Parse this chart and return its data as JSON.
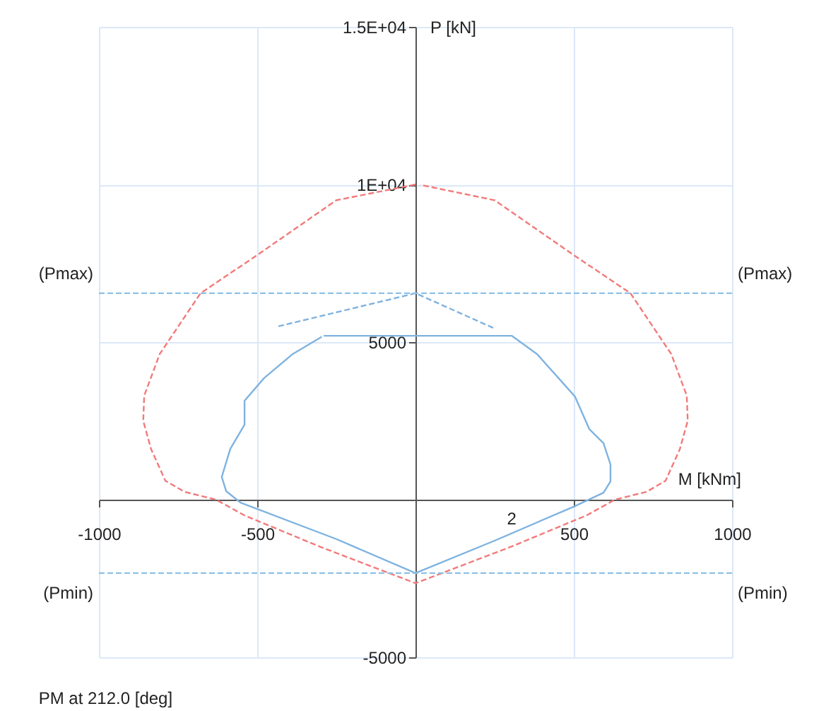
{
  "chart_data": {
    "type": "line",
    "xlabel": "M [kNm]",
    "ylabel": "P [kN]",
    "annotations": [
      "PM at 212.0 [deg]",
      "2"
    ],
    "xlim": [
      -1000,
      1000
    ],
    "ylim": [
      -5000,
      15000
    ],
    "xticks": [
      -1000,
      -500,
      500,
      1000
    ],
    "yticks": [
      -5000,
      5000,
      {
        "value": 10000,
        "label": "1E+04"
      },
      {
        "value": 15000,
        "label": "1.5E+04"
      }
    ],
    "grid": true,
    "ref_lines": [
      {
        "axis": "y",
        "value": 6550,
        "label": "(Pmax)",
        "color": "#8ec1e8",
        "line_style": "dashed"
      },
      {
        "axis": "y",
        "value": -2330,
        "label": "(Pmin)",
        "color": "#8ec1e8",
        "line_style": "dashed"
      }
    ],
    "series": [
      {
        "color": "#f27a7a",
        "line_style": "dashed",
        "x": [
          0,
          -250,
          -500,
          -679,
          -808,
          -857,
          -860,
          -835,
          -790,
          -730,
          -630,
          -540,
          -300,
          0,
          300,
          540,
          630,
          730,
          790,
          835,
          860,
          857,
          808,
          679,
          500,
          250,
          15
        ],
        "values": [
          10000,
          9500,
          7760,
          6550,
          4620,
          3300,
          2500,
          1600,
          600,
          250,
          0,
          -500,
          -1500,
          -2650,
          -1500,
          -500,
          0,
          250,
          600,
          1600,
          2500,
          3300,
          4620,
          6550,
          7760,
          9500,
          9990
        ]
      },
      {
        "color": "#7fb3e0",
        "line_style": "solid",
        "x": [
          -290,
          304,
          384,
          504,
          549,
          594,
          616,
          616,
          594,
          500,
          250,
          0,
          -250,
          -553,
          -598,
          -612,
          -585,
          -540,
          -540,
          -478,
          -388,
          -296
        ],
        "values": [
          5200,
          5200,
          4620,
          3270,
          2240,
          1790,
          1120,
          580,
          220,
          -220,
          -1300,
          -2330,
          -1250,
          -90,
          270,
          720,
          1610,
          2380,
          3140,
          3860,
          4620,
          5170
        ]
      },
      {
        "color": "#7fb3e0",
        "line_style": "dashed",
        "x": [
          -433,
          0,
          250
        ],
        "values": [
          5500,
          6550,
          5430
        ]
      }
    ]
  }
}
